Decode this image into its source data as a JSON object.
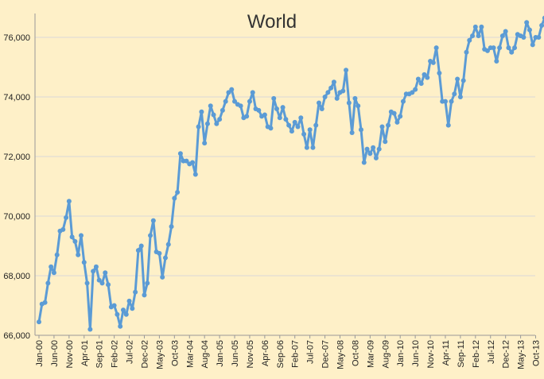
{
  "chart_data": {
    "type": "line",
    "title": "World",
    "xlabel": "",
    "ylabel": "",
    "ylim": [
      66000,
      76800
    ],
    "yticks": [
      66000,
      68000,
      70000,
      72000,
      74000,
      76000
    ],
    "ytick_labels": [
      "66,000",
      "68,000",
      "70,000",
      "72,000",
      "74,000",
      "76,000"
    ],
    "xtick_labels": [
      "Jan-00",
      "Jun-00",
      "Nov-00",
      "Apr-01",
      "Sep-01",
      "Feb-02",
      "Jul-02",
      "Dec-02",
      "May-03",
      "Oct-03",
      "Mar-04",
      "Aug-04",
      "Jan-05",
      "Jun-05",
      "Nov-05",
      "Apr-06",
      "Sep-06",
      "Feb-07",
      "Jul-07",
      "Dec-07",
      "May-08",
      "Oct-08",
      "Mar-09",
      "Aug-09",
      "Jan-10",
      "Jun-10",
      "Nov-10",
      "Apr-11",
      "Sep-11",
      "Feb-12",
      "Jul-12",
      "Dec-12",
      "May-13",
      "Oct-13"
    ],
    "grid": true,
    "series_color": "#5B9BD5",
    "series": [
      {
        "values": [
          66450,
          67050,
          67100,
          67750,
          68300,
          68100,
          68700,
          69500,
          69550,
          69950,
          70500,
          69300,
          69150,
          68700,
          69350,
          68450,
          67750,
          66200,
          68150,
          68300,
          67850,
          67750,
          68100,
          67700,
          66950,
          67000,
          66700,
          66300,
          66850,
          66700,
          67150,
          66900,
          67450,
          68850,
          69000,
          67350,
          67750,
          69350,
          69850,
          68800,
          68750,
          67950,
          68600,
          69050,
          69650,
          70600,
          70800,
          72100,
          71850,
          71850,
          71750,
          71800,
          71400,
          73000,
          73500,
          72450,
          73100,
          73700,
          73400,
          73100,
          73250,
          73550,
          73850,
          74150,
          74250,
          73850,
          73750,
          73700,
          73300,
          73350,
          73850,
          74150,
          73600,
          73550,
          73350,
          73400,
          73000,
          72950,
          73950,
          73600,
          73300,
          73650,
          73250,
          73050,
          72850,
          73150,
          73000,
          73300,
          72750,
          72300,
          72900,
          72300,
          73050,
          73800,
          73600,
          74000,
          74150,
          74300,
          74500,
          73950,
          74150,
          74200,
          74900,
          73800,
          72800,
          73950,
          73700,
          72900,
          71800,
          72250,
          72100,
          72300,
          71950,
          72250,
          73000,
          72500,
          73050,
          73500,
          73450,
          73150,
          73350,
          73850,
          74100,
          74100,
          74150,
          74250,
          74600,
          74450,
          74750,
          74650,
          75200,
          75150,
          75650,
          74800,
          73850,
          73850,
          73050,
          73850,
          74100,
          74600,
          74000,
          74550,
          75500,
          75900,
          76050,
          76350,
          76050,
          76350,
          75600,
          75550,
          75650,
          75650,
          75200,
          75650,
          76050,
          76200,
          75650,
          75500,
          75650,
          76100,
          76050,
          76000,
          76500,
          76250,
          75750,
          76000,
          76000,
          76400,
          76650
        ]
      }
    ]
  }
}
